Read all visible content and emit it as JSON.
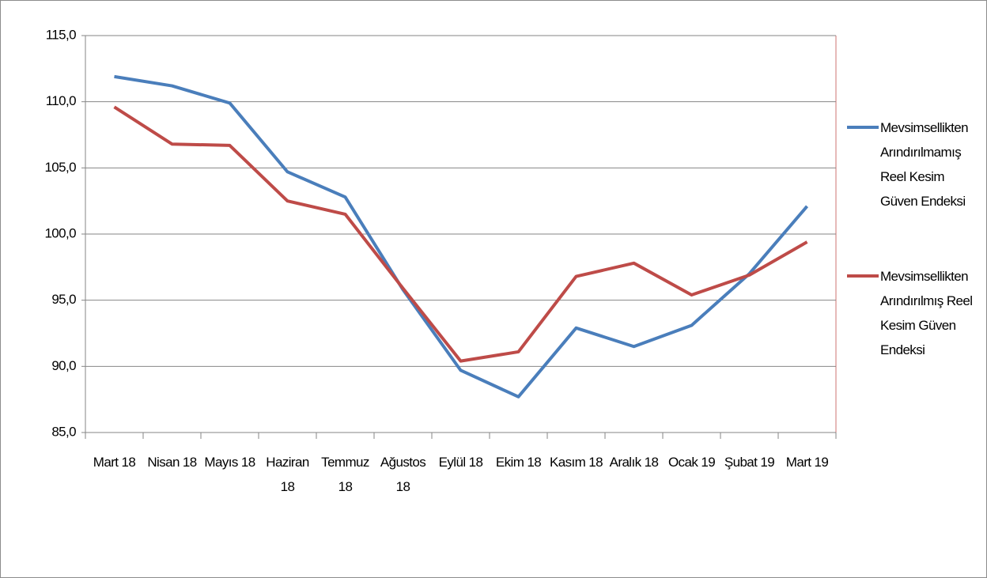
{
  "chart_data": {
    "type": "line",
    "categories": [
      "Mart 18",
      "Nisan 18",
      "Mayıs 18",
      "Haziran 18",
      "Temmuz 18",
      "Ağustos 18",
      "Eylül 18",
      "Ekim 18",
      "Kasım 18",
      "Aralık 18",
      "Ocak 19",
      "Şubat 19",
      "Mart 19"
    ],
    "series": [
      {
        "name": "Mevsimsellikten Arındırılmamış Reel Kesim Güven Endeksi",
        "color": "#4a7ebb",
        "values": [
          111.9,
          111.2,
          109.9,
          104.7,
          102.8,
          95.8,
          89.7,
          87.7,
          92.9,
          91.5,
          93.1,
          97.0,
          102.1
        ]
      },
      {
        "name": "Mevsimsellikten Arındırılmış Reel Kesim Güven Endeksi",
        "color": "#be4b48",
        "values": [
          109.6,
          106.8,
          106.7,
          102.5,
          101.5,
          95.9,
          90.4,
          91.1,
          96.8,
          97.8,
          95.4,
          96.9,
          99.4
        ]
      }
    ],
    "ylim": [
      85,
      115
    ],
    "yticks": [
      {
        "value": 85,
        "label": "85,0"
      },
      {
        "value": 90,
        "label": "90,0"
      },
      {
        "value": 95,
        "label": "95,0"
      },
      {
        "value": 100,
        "label": "100,0"
      },
      {
        "value": 105,
        "label": "105,0"
      },
      {
        "value": 110,
        "label": "110,0"
      },
      {
        "value": 115,
        "label": "115,0"
      }
    ],
    "grid": true,
    "legend": "right"
  }
}
